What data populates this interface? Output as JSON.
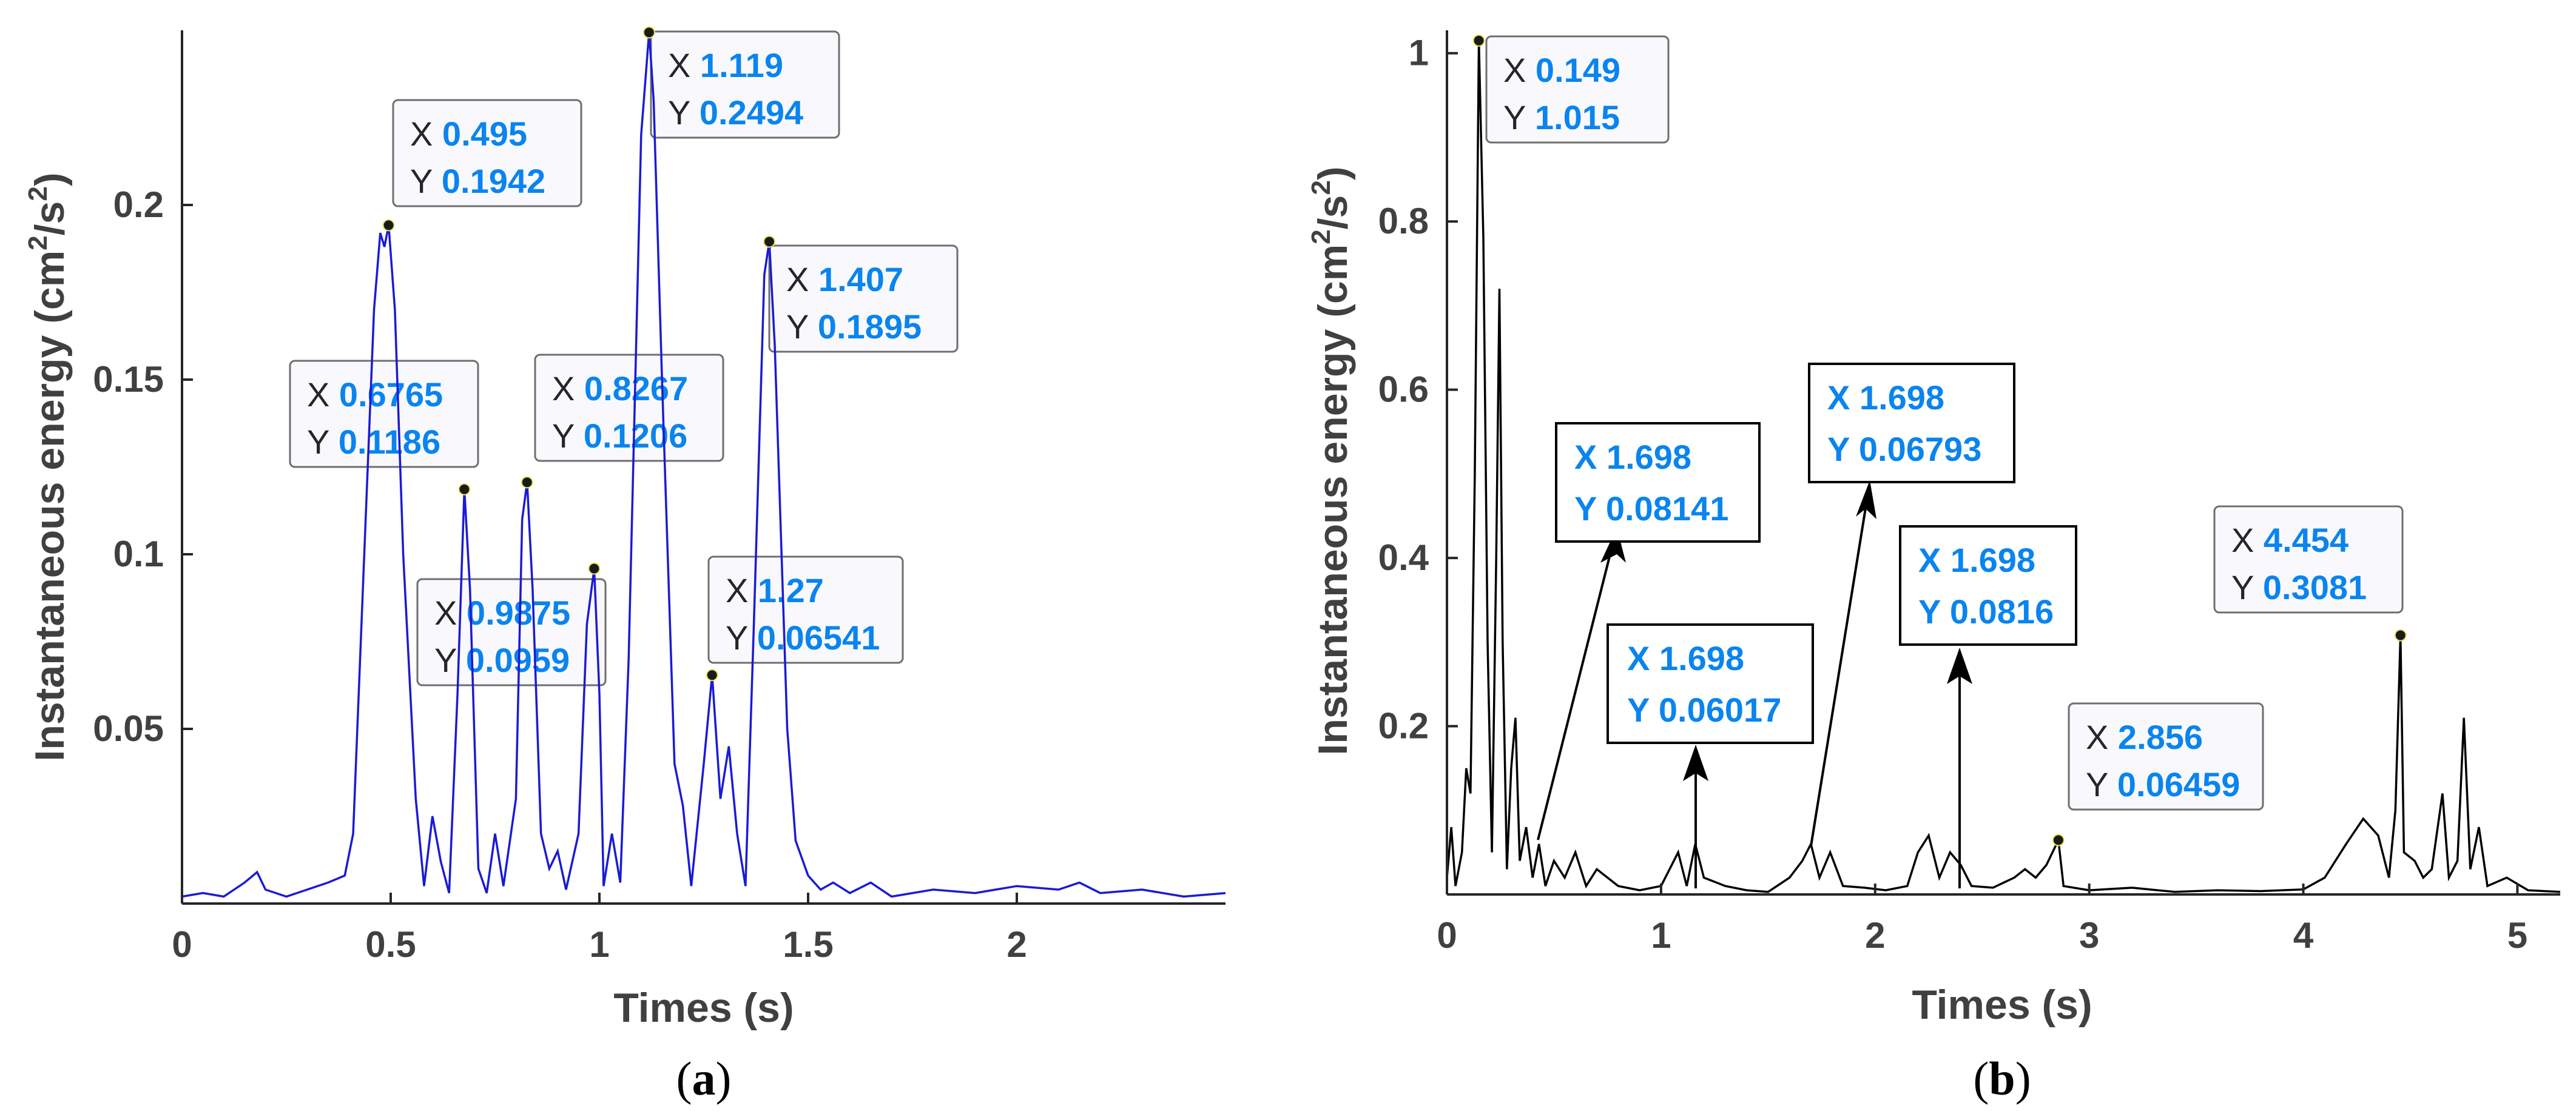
{
  "chart_data": [
    {
      "id": "a",
      "type": "line",
      "caption_letter": "a",
      "xlabel": "Times (s)",
      "ylabel_base": "Instantaneous energy (cm",
      "ylabel_mid": "/s",
      "ylabel_end": ")",
      "ylabel_sup": "2",
      "xlim": [
        0,
        2.5
      ],
      "ylim": [
        0,
        0.25
      ],
      "xticks": [
        "0",
        "0.5",
        "1",
        "1.5",
        "2"
      ],
      "xtick_values": [
        0,
        0.5,
        1,
        1.5,
        2
      ],
      "yticks": [
        "0.05",
        "0.1",
        "0.15",
        "0.2"
      ],
      "ytick_values": [
        0.05,
        0.1,
        0.15,
        0.2
      ],
      "line_color": "#1a1ad6",
      "datatips": [
        {
          "x": 0.495,
          "y": 0.1942,
          "xl": "0.495",
          "yl": "0.1942"
        },
        {
          "x": 0.6765,
          "y": 0.1186,
          "xl": "0.6765",
          "yl": "0.1186"
        },
        {
          "x": 0.8267,
          "y": 0.1206,
          "xl": "0.8267",
          "yl": "0.1206"
        },
        {
          "x": 0.9875,
          "y": 0.0959,
          "xl": "0.9875",
          "yl": "0.0959"
        },
        {
          "x": 1.119,
          "y": 0.2494,
          "xl": "1.119",
          "yl": "0.2494"
        },
        {
          "x": 1.27,
          "y": 0.06541,
          "xl": "1.27",
          "yl": "0.06541"
        },
        {
          "x": 1.407,
          "y": 0.1895,
          "xl": "1.407",
          "yl": "0.1895"
        }
      ],
      "series": [
        {
          "name": "energy",
          "points": [
            [
              0,
              0.002
            ],
            [
              0.05,
              0.003
            ],
            [
              0.1,
              0.002
            ],
            [
              0.15,
              0.006
            ],
            [
              0.18,
              0.009
            ],
            [
              0.2,
              0.004
            ],
            [
              0.25,
              0.002
            ],
            [
              0.3,
              0.004
            ],
            [
              0.35,
              0.006
            ],
            [
              0.39,
              0.008
            ],
            [
              0.41,
              0.02
            ],
            [
              0.44,
              0.11
            ],
            [
              0.46,
              0.17
            ],
            [
              0.475,
              0.192
            ],
            [
              0.485,
              0.188
            ],
            [
              0.495,
              0.1942
            ],
            [
              0.51,
              0.17
            ],
            [
              0.53,
              0.1
            ],
            [
              0.56,
              0.03
            ],
            [
              0.58,
              0.005
            ],
            [
              0.6,
              0.025
            ],
            [
              0.62,
              0.012
            ],
            [
              0.64,
              0.003
            ],
            [
              0.66,
              0.06
            ],
            [
              0.6765,
              0.1186
            ],
            [
              0.69,
              0.09
            ],
            [
              0.71,
              0.01
            ],
            [
              0.73,
              0.003
            ],
            [
              0.75,
              0.02
            ],
            [
              0.77,
              0.005
            ],
            [
              0.8,
              0.03
            ],
            [
              0.815,
              0.11
            ],
            [
              0.8267,
              0.1206
            ],
            [
              0.84,
              0.09
            ],
            [
              0.86,
              0.02
            ],
            [
              0.88,
              0.01
            ],
            [
              0.9,
              0.015
            ],
            [
              0.92,
              0.004
            ],
            [
              0.95,
              0.02
            ],
            [
              0.97,
              0.08
            ],
            [
              0.9875,
              0.0959
            ],
            [
              1.0,
              0.06
            ],
            [
              1.01,
              0.005
            ],
            [
              1.03,
              0.02
            ],
            [
              1.05,
              0.006
            ],
            [
              1.07,
              0.07
            ],
            [
              1.1,
              0.22
            ],
            [
              1.119,
              0.2494
            ],
            [
              1.13,
              0.23
            ],
            [
              1.15,
              0.15
            ],
            [
              1.18,
              0.04
            ],
            [
              1.2,
              0.028
            ],
            [
              1.22,
              0.005
            ],
            [
              1.25,
              0.04
            ],
            [
              1.27,
              0.06541
            ],
            [
              1.29,
              0.03
            ],
            [
              1.31,
              0.045
            ],
            [
              1.33,
              0.02
            ],
            [
              1.35,
              0.005
            ],
            [
              1.37,
              0.08
            ],
            [
              1.395,
              0.18
            ],
            [
              1.407,
              0.1895
            ],
            [
              1.42,
              0.16
            ],
            [
              1.45,
              0.05
            ],
            [
              1.47,
              0.018
            ],
            [
              1.5,
              0.008
            ],
            [
              1.53,
              0.004
            ],
            [
              1.56,
              0.006
            ],
            [
              1.6,
              0.003
            ],
            [
              1.65,
              0.006
            ],
            [
              1.7,
              0.002
            ],
            [
              1.8,
              0.004
            ],
            [
              1.9,
              0.003
            ],
            [
              2.0,
              0.005
            ],
            [
              2.1,
              0.004
            ],
            [
              2.15,
              0.006
            ],
            [
              2.2,
              0.003
            ],
            [
              2.3,
              0.004
            ],
            [
              2.4,
              0.002
            ],
            [
              2.5,
              0.003
            ]
          ]
        }
      ]
    },
    {
      "id": "b",
      "type": "line",
      "caption_letter": "b",
      "xlabel": "Times (s)",
      "ylabel_base": "Instantaneous energy (cm",
      "ylabel_mid": "/s",
      "ylabel_end": ")",
      "ylabel_sup": "2",
      "xlim": [
        0,
        5.2
      ],
      "ylim": [
        0,
        1.02
      ],
      "xticks": [
        "0",
        "1",
        "2",
        "3",
        "4",
        "5"
      ],
      "xtick_values": [
        0,
        1,
        2,
        3,
        4,
        5
      ],
      "yticks": [
        "0.2",
        "0.4",
        "0.6",
        "0.8",
        "1"
      ],
      "ytick_values": [
        0.2,
        0.4,
        0.6,
        0.8,
        1
      ],
      "line_color": "#000000",
      "datatips": [
        {
          "x": 0.149,
          "y": 1.015,
          "xl": "0.149",
          "yl": "1.015"
        },
        {
          "x": 2.856,
          "y": 0.06459,
          "xl": "2.856",
          "yl": "0.06459"
        },
        {
          "x": 4.454,
          "y": 0.3081,
          "xl": "4.454",
          "yl": "0.3081"
        }
      ],
      "annotations": [
        {
          "xl": "1.698",
          "yl": "0.08141"
        },
        {
          "xl": "1.698",
          "yl": "0.06017"
        },
        {
          "xl": "1.698",
          "yl": "0.06793"
        },
        {
          "xl": "1.698",
          "yl": "0.0816"
        }
      ],
      "series": [
        {
          "name": "energy",
          "points": [
            [
              0,
              0.02
            ],
            [
              0.02,
              0.08
            ],
            [
              0.04,
              0.01
            ],
            [
              0.07,
              0.05
            ],
            [
              0.09,
              0.15
            ],
            [
              0.11,
              0.12
            ],
            [
              0.13,
              0.5
            ],
            [
              0.149,
              1.015
            ],
            [
              0.17,
              0.78
            ],
            [
              0.19,
              0.3
            ],
            [
              0.21,
              0.05
            ],
            [
              0.23,
              0.4
            ],
            [
              0.245,
              0.72
            ],
            [
              0.26,
              0.3
            ],
            [
              0.28,
              0.03
            ],
            [
              0.3,
              0.15
            ],
            [
              0.32,
              0.21
            ],
            [
              0.34,
              0.04
            ],
            [
              0.37,
              0.08
            ],
            [
              0.4,
              0.02
            ],
            [
              0.43,
              0.06
            ],
            [
              0.46,
              0.01
            ],
            [
              0.5,
              0.04
            ],
            [
              0.55,
              0.02
            ],
            [
              0.6,
              0.05
            ],
            [
              0.65,
              0.01
            ],
            [
              0.7,
              0.03
            ],
            [
              0.8,
              0.01
            ],
            [
              0.9,
              0.005
            ],
            [
              1.0,
              0.01
            ],
            [
              1.08,
              0.05
            ],
            [
              1.12,
              0.01
            ],
            [
              1.16,
              0.06
            ],
            [
              1.2,
              0.02
            ],
            [
              1.3,
              0.01
            ],
            [
              1.4,
              0.005
            ],
            [
              1.5,
              0.003
            ],
            [
              1.6,
              0.02
            ],
            [
              1.66,
              0.04
            ],
            [
              1.7,
              0.06
            ],
            [
              1.74,
              0.02
            ],
            [
              1.79,
              0.05
            ],
            [
              1.85,
              0.01
            ],
            [
              1.95,
              0.008
            ],
            [
              2.05,
              0.005
            ],
            [
              2.15,
              0.01
            ],
            [
              2.2,
              0.05
            ],
            [
              2.25,
              0.07
            ],
            [
              2.3,
              0.02
            ],
            [
              2.35,
              0.05
            ],
            [
              2.4,
              0.035
            ],
            [
              2.45,
              0.01
            ],
            [
              2.55,
              0.008
            ],
            [
              2.65,
              0.02
            ],
            [
              2.7,
              0.03
            ],
            [
              2.75,
              0.02
            ],
            [
              2.8,
              0.035
            ],
            [
              2.856,
              0.06459
            ],
            [
              2.88,
              0.01
            ],
            [
              3.0,
              0.005
            ],
            [
              3.2,
              0.008
            ],
            [
              3.4,
              0.003
            ],
            [
              3.6,
              0.005
            ],
            [
              3.8,
              0.004
            ],
            [
              4.0,
              0.006
            ],
            [
              4.1,
              0.02
            ],
            [
              4.2,
              0.06
            ],
            [
              4.28,
              0.09
            ],
            [
              4.35,
              0.07
            ],
            [
              4.4,
              0.02
            ],
            [
              4.43,
              0.1
            ],
            [
              4.454,
              0.3081
            ],
            [
              4.47,
              0.05
            ],
            [
              4.52,
              0.04
            ],
            [
              4.56,
              0.02
            ],
            [
              4.6,
              0.03
            ],
            [
              4.65,
              0.12
            ],
            [
              4.68,
              0.02
            ],
            [
              4.72,
              0.04
            ],
            [
              4.75,
              0.21
            ],
            [
              4.78,
              0.03
            ],
            [
              4.82,
              0.08
            ],
            [
              4.86,
              0.01
            ],
            [
              4.95,
              0.02
            ],
            [
              5.05,
              0.005
            ],
            [
              5.2,
              0.003
            ]
          ]
        }
      ]
    }
  ]
}
